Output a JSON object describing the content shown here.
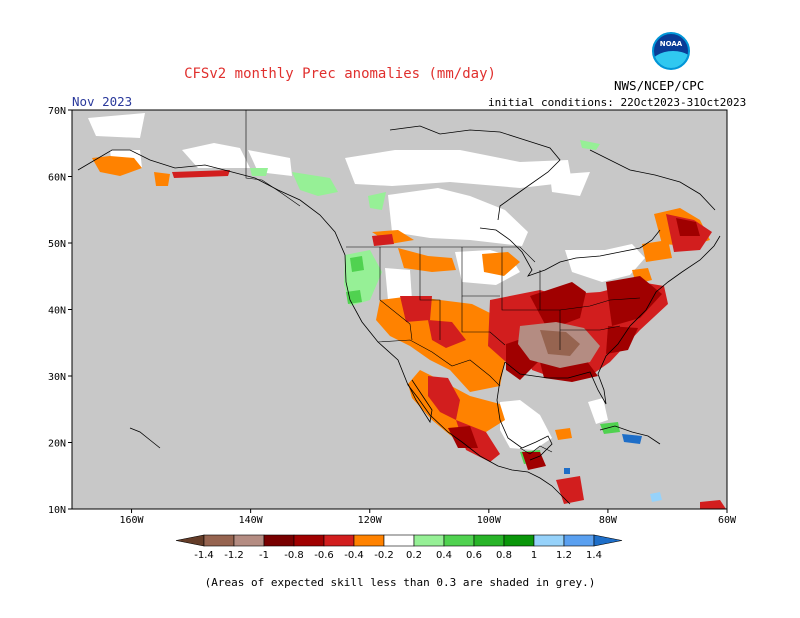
{
  "header": {
    "title": "CFSv2 monthly Prec anomalies (mm/day)",
    "agency": "NWS/NCEP/CPC",
    "logo_text": "NOAA",
    "month": "Nov 2023",
    "initial_conditions": "initial conditions: 22Oct2023-31Oct2023"
  },
  "map": {
    "lat_labels": [
      "70N",
      "60N",
      "50N",
      "40N",
      "30N",
      "20N",
      "10N"
    ],
    "lon_labels": [
      "160W",
      "140W",
      "120W",
      "100W",
      "80W",
      "60W"
    ],
    "lat_range": [
      10,
      70
    ],
    "lon_range": [
      -170,
      -60
    ],
    "low_skill_color": "#c8c8c8"
  },
  "legend": {
    "labels": [
      "-1.4",
      "-1.2",
      "-1",
      "-0.8",
      "-0.6",
      "-0.4",
      "-0.2",
      "0.2",
      "0.4",
      "0.6",
      "0.8",
      "1",
      "1.2",
      "1.4"
    ],
    "colors": [
      "#643c28",
      "#966450",
      "#b48c82",
      "#780000",
      "#a00000",
      "#d21e1e",
      "#ff8200",
      "#ffffff",
      "#96f096",
      "#50d250",
      "#28b428",
      "#0a960a",
      "#96d2fa",
      "#5aa0f0",
      "#1e6ec8"
    ]
  },
  "footnote": "(Areas of expected skill less than 0.3 are shaded in grey.)"
}
